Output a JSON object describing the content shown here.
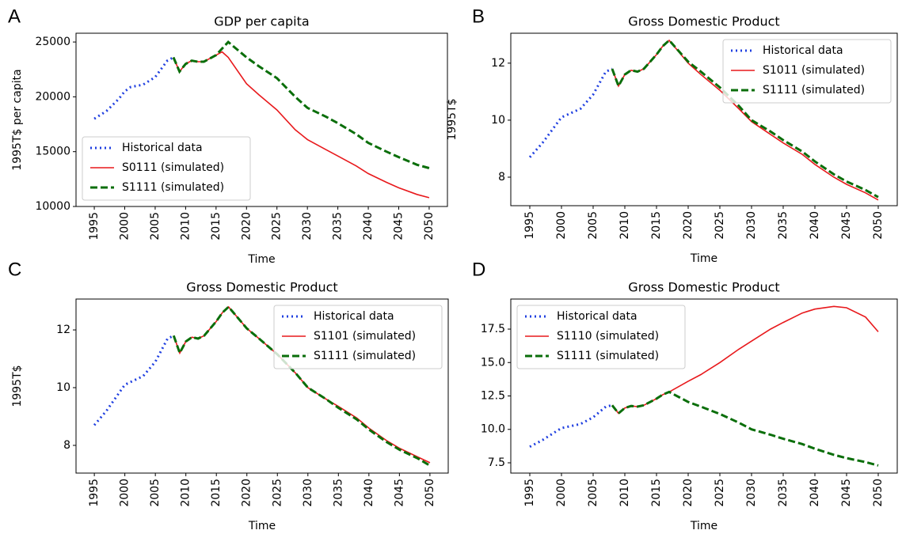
{
  "chart_data": [
    {
      "type": "line",
      "panel_label": "A",
      "title": "GDP per capita",
      "xlabel": "Time",
      "ylabel": "1995T$ per capita",
      "x": [
        1995,
        1997,
        1999,
        2000,
        2001,
        2003,
        2005,
        2007,
        2008,
        2009,
        2010,
        2011,
        2012,
        2013,
        2015,
        2016,
        2017,
        2020,
        2022,
        2025,
        2028,
        2030,
        2033,
        2035,
        2038,
        2040,
        2043,
        2045,
        2048,
        2050
      ],
      "xlim": [
        1992,
        2053
      ],
      "xticks": [
        1995,
        2000,
        2005,
        2010,
        2015,
        2020,
        2025,
        2030,
        2035,
        2040,
        2045,
        2050
      ],
      "ylim": [
        10000,
        25800
      ],
      "yticks": [
        10000,
        15000,
        20000,
        25000
      ],
      "legend_loc": "lower left",
      "series": [
        {
          "name": "Historical data",
          "color": "#1f3fe0",
          "style": "dotted",
          "values": [
            18000,
            18700,
            19800,
            20500,
            20900,
            21100,
            21800,
            23300,
            23600,
            null,
            null,
            null,
            null,
            null,
            null,
            null,
            null,
            null,
            null,
            null,
            null,
            null,
            null,
            null,
            null,
            null,
            null,
            null,
            null,
            null
          ]
        },
        {
          "name": "S0111 (simulated)",
          "color": "#e8191c",
          "style": "solid",
          "values": [
            null,
            null,
            null,
            null,
            null,
            null,
            null,
            null,
            23600,
            22300,
            23000,
            23300,
            23200,
            23200,
            23800,
            24100,
            23600,
            21200,
            20200,
            18800,
            17000,
            16100,
            15200,
            14600,
            13700,
            13000,
            12200,
            11700,
            11100,
            10800
          ]
        },
        {
          "name": "S1111 (simulated)",
          "color": "#0a6e0a",
          "style": "dashed",
          "values": [
            null,
            null,
            null,
            null,
            null,
            null,
            null,
            null,
            23600,
            22300,
            23000,
            23300,
            23200,
            23200,
            23800,
            24400,
            25000,
            23600,
            22800,
            21700,
            20000,
            19000,
            18200,
            17600,
            16600,
            15800,
            15000,
            14500,
            13800,
            13500
          ]
        }
      ]
    },
    {
      "type": "line",
      "panel_label": "B",
      "title": "Gross Domestic Product",
      "xlabel": "Time",
      "ylabel": "1995T$",
      "x": [
        1995,
        1997,
        1999,
        2000,
        2001,
        2003,
        2005,
        2007,
        2008,
        2009,
        2010,
        2011,
        2012,
        2013,
        2015,
        2016,
        2017,
        2020,
        2022,
        2025,
        2028,
        2030,
        2033,
        2035,
        2038,
        2040,
        2043,
        2045,
        2048,
        2050
      ],
      "xlim": [
        1992,
        2053
      ],
      "xticks": [
        1995,
        2000,
        2005,
        2010,
        2015,
        2020,
        2025,
        2030,
        2035,
        2040,
        2045,
        2050
      ],
      "ylim": [
        7,
        13.05
      ],
      "yticks": [
        8,
        10,
        12
      ],
      "legend_loc": "upper right",
      "series": [
        {
          "name": "Historical data",
          "color": "#1f3fe0",
          "style": "dotted",
          "values": [
            8.7,
            9.2,
            9.8,
            10.1,
            10.2,
            10.4,
            10.9,
            11.7,
            11.8,
            null,
            null,
            null,
            null,
            null,
            null,
            null,
            null,
            null,
            null,
            null,
            null,
            null,
            null,
            null,
            null,
            null,
            null,
            null,
            null,
            null
          ]
        },
        {
          "name": "S1011 (simulated)",
          "color": "#e8191c",
          "style": "solid",
          "values": [
            null,
            null,
            null,
            null,
            null,
            null,
            null,
            null,
            11.8,
            11.2,
            11.6,
            11.75,
            11.7,
            11.8,
            12.3,
            12.6,
            12.8,
            12.0,
            11.6,
            11.05,
            10.4,
            9.95,
            9.5,
            9.2,
            8.8,
            8.45,
            8.0,
            7.75,
            7.45,
            7.2
          ]
        },
        {
          "name": "S1111 (simulated)",
          "color": "#0a6e0a",
          "style": "dashed",
          "values": [
            null,
            null,
            null,
            null,
            null,
            null,
            null,
            null,
            11.8,
            11.2,
            11.6,
            11.75,
            11.7,
            11.8,
            12.3,
            12.6,
            12.8,
            12.05,
            11.7,
            11.15,
            10.5,
            10.0,
            9.6,
            9.3,
            8.9,
            8.55,
            8.1,
            7.85,
            7.55,
            7.3
          ]
        }
      ]
    },
    {
      "type": "line",
      "panel_label": "C",
      "title": "Gross Domestic Product",
      "xlabel": "Time",
      "ylabel": "1995T$",
      "x": [
        1995,
        1997,
        1999,
        2000,
        2001,
        2003,
        2005,
        2007,
        2008,
        2009,
        2010,
        2011,
        2012,
        2013,
        2015,
        2016,
        2017,
        2020,
        2022,
        2025,
        2028,
        2030,
        2033,
        2035,
        2038,
        2040,
        2043,
        2045,
        2048,
        2050
      ],
      "xlim": [
        1992,
        2053
      ],
      "xticks": [
        1995,
        2000,
        2005,
        2010,
        2015,
        2020,
        2025,
        2030,
        2035,
        2040,
        2045,
        2050
      ],
      "ylim": [
        7.04,
        13.07
      ],
      "yticks": [
        8,
        10,
        12
      ],
      "legend_loc": "upper right",
      "series": [
        {
          "name": "Historical data",
          "color": "#1f3fe0",
          "style": "dotted",
          "values": [
            8.7,
            9.2,
            9.8,
            10.1,
            10.2,
            10.4,
            10.9,
            11.7,
            11.8,
            null,
            null,
            null,
            null,
            null,
            null,
            null,
            null,
            null,
            null,
            null,
            null,
            null,
            null,
            null,
            null,
            null,
            null,
            null,
            null,
            null
          ]
        },
        {
          "name": "S1101 (simulated)",
          "color": "#e8191c",
          "style": "solid",
          "values": [
            null,
            null,
            null,
            null,
            null,
            null,
            null,
            null,
            11.8,
            11.2,
            11.6,
            11.75,
            11.7,
            11.8,
            12.3,
            12.6,
            12.8,
            12.05,
            11.7,
            11.15,
            10.5,
            10.0,
            9.6,
            9.35,
            8.95,
            8.6,
            8.15,
            7.9,
            7.6,
            7.4
          ]
        },
        {
          "name": "S1111 (simulated)",
          "color": "#0a6e0a",
          "style": "dashed",
          "values": [
            null,
            null,
            null,
            null,
            null,
            null,
            null,
            null,
            11.8,
            11.2,
            11.6,
            11.75,
            11.7,
            11.8,
            12.3,
            12.6,
            12.8,
            12.05,
            11.7,
            11.15,
            10.5,
            10.0,
            9.6,
            9.3,
            8.9,
            8.55,
            8.1,
            7.85,
            7.55,
            7.3
          ]
        }
      ]
    },
    {
      "type": "line",
      "panel_label": "D",
      "title": "Gross Domestic Product",
      "xlabel": "Time",
      "x": [
        1995,
        1997,
        1999,
        2000,
        2001,
        2003,
        2005,
        2007,
        2008,
        2009,
        2010,
        2011,
        2012,
        2013,
        2015,
        2016,
        2017,
        2020,
        2022,
        2025,
        2028,
        2030,
        2033,
        2035,
        2038,
        2040,
        2043,
        2045,
        2048,
        2050
      ],
      "xlim": [
        1992,
        2053
      ],
      "xticks": [
        1995,
        2000,
        2005,
        2010,
        2015,
        2020,
        2025,
        2030,
        2035,
        2040,
        2045,
        2050
      ],
      "ylim": [
        6.73,
        19.75
      ],
      "yticks": [
        7.5,
        {
          "value": 10,
          "label": "10.0"
        },
        12.5,
        {
          "value": 15,
          "label": "15.0"
        },
        17.5
      ],
      "legend_loc": "upper left",
      "series": [
        {
          "name": "Historical data",
          "color": "#1f3fe0",
          "style": "dotted",
          "values": [
            8.7,
            9.2,
            9.8,
            10.1,
            10.2,
            10.4,
            10.9,
            11.7,
            11.8,
            null,
            null,
            null,
            null,
            null,
            null,
            null,
            null,
            null,
            null,
            null,
            null,
            null,
            null,
            null,
            null,
            null,
            null,
            null,
            null,
            null
          ]
        },
        {
          "name": "S1110 (simulated)",
          "color": "#e8191c",
          "style": "solid",
          "values": [
            null,
            null,
            null,
            null,
            null,
            null,
            null,
            null,
            11.8,
            11.2,
            11.6,
            11.75,
            11.7,
            11.8,
            12.3,
            12.6,
            12.8,
            13.6,
            14.1,
            15.0,
            16.0,
            16.6,
            17.5,
            18.0,
            18.7,
            19.0,
            19.2,
            19.1,
            18.4,
            17.3
          ]
        },
        {
          "name": "S1111 (simulated)",
          "color": "#0a6e0a",
          "style": "dashed",
          "values": [
            null,
            null,
            null,
            null,
            null,
            null,
            null,
            null,
            11.8,
            11.2,
            11.6,
            11.75,
            11.7,
            11.8,
            12.3,
            12.6,
            12.8,
            12.05,
            11.7,
            11.15,
            10.5,
            10.0,
            9.6,
            9.3,
            8.9,
            8.55,
            8.1,
            7.85,
            7.55,
            7.3
          ]
        }
      ]
    }
  ]
}
